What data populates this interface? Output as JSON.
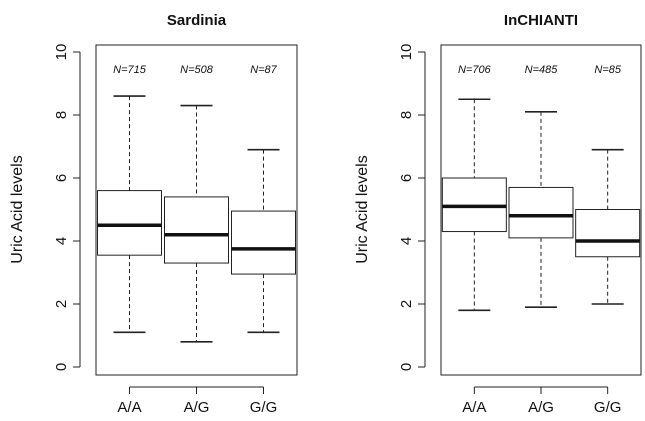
{
  "chart_data": [
    {
      "type": "box",
      "title": "Sardinia",
      "ylabel": "Uric Acid levels",
      "xlabel": "",
      "ylim": [
        0,
        10
      ],
      "yticks": [
        0,
        2,
        4,
        6,
        8,
        10
      ],
      "grid": false,
      "categories": [
        "A/A",
        "A/G",
        "G/G"
      ],
      "counts": [
        "N=715",
        "N=508",
        "N=87"
      ],
      "boxes": [
        {
          "min": 1.1,
          "q1": 3.55,
          "median": 4.5,
          "q3": 5.6,
          "max": 8.6
        },
        {
          "min": 0.8,
          "q1": 3.3,
          "median": 4.2,
          "q3": 5.4,
          "max": 8.3
        },
        {
          "min": 1.1,
          "q1": 2.95,
          "median": 3.75,
          "q3": 4.95,
          "max": 6.9
        }
      ]
    },
    {
      "type": "box",
      "title": "InCHIANTI",
      "ylabel": "Uric Acid levels",
      "xlabel": "",
      "ylim": [
        0,
        10
      ],
      "yticks": [
        0,
        2,
        4,
        6,
        8,
        10
      ],
      "grid": false,
      "categories": [
        "A/A",
        "A/G",
        "G/G"
      ],
      "counts": [
        "N=706",
        "N=485",
        "N=85"
      ],
      "boxes": [
        {
          "min": 1.8,
          "q1": 4.3,
          "median": 5.1,
          "q3": 6.0,
          "max": 8.5
        },
        {
          "min": 1.9,
          "q1": 4.1,
          "median": 4.8,
          "q3": 5.7,
          "max": 8.1
        },
        {
          "min": 2.0,
          "q1": 3.5,
          "median": 4.0,
          "q3": 5.0,
          "max": 6.9
        }
      ]
    }
  ]
}
